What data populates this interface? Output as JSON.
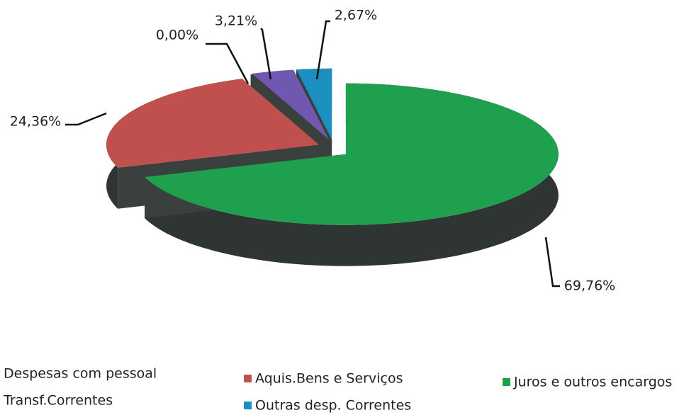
{
  "chart_data": {
    "type": "pie",
    "categories": [
      "Despesas com pessoal",
      "Aquis.Bens e Serviços",
      "Juros e outros encargos",
      "Transf.Correntes",
      "Outras desp. Correntes"
    ],
    "values": [
      0.0,
      24.36,
      69.76,
      3.21,
      2.67
    ],
    "value_labels": [
      "0,00%",
      "24,36%",
      "69,76%",
      "3,21%",
      "2,67%"
    ],
    "colors": [
      "#4f81bd",
      "#c0504d",
      "#1fa04e",
      "#7057b0",
      "#1b8fc0"
    ],
    "legend": "bottom"
  }
}
